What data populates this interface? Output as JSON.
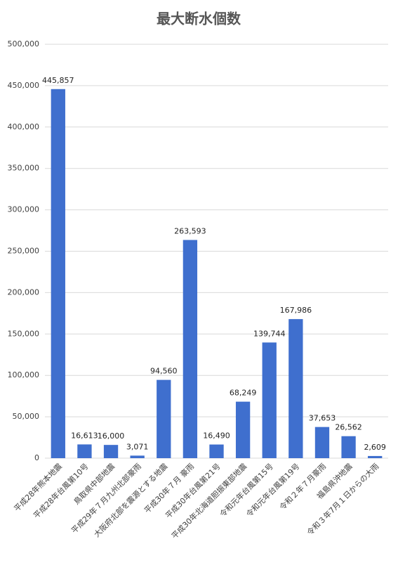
{
  "chart_data": {
    "type": "bar",
    "title": "最大断水個数",
    "categories": [
      "平成28年熊本地震",
      "平成28年台風第10号",
      "鳥取県中部地震",
      "平成29年７月九州北部豪雨",
      "大阪府北部を震源とする地震",
      "平成30年７月 豪雨",
      "平成30年台風第21号",
      "平成30年北海道胆振東部地震",
      "令和元年台風第15号",
      "令和元年台風第19号",
      "令和２年７月豪雨",
      "福島県沖地震",
      "令和３年7月１日からの大雨"
    ],
    "values": [
      445857,
      16613,
      16000,
      3071,
      94560,
      263593,
      16490,
      68249,
      139744,
      167986,
      37653,
      26562,
      2609
    ],
    "value_labels": [
      "445,857",
      "16,613",
      "16,000",
      "3,071",
      "94,560",
      "263,593",
      "16,490",
      "68,249",
      "139,744",
      "167,986",
      "37,653",
      "26,562",
      "2,609"
    ],
    "color": "#3f6fce",
    "ylim": [
      0,
      500000
    ],
    "yticks": [
      {
        "value": 0,
        "label": "0"
      },
      {
        "value": 50000,
        "label": "50,000"
      },
      {
        "value": 100000,
        "label": "100,000"
      },
      {
        "value": 150000,
        "label": "150,000"
      },
      {
        "value": 200000,
        "label": "200,000"
      },
      {
        "value": 250000,
        "label": "250,000"
      },
      {
        "value": 300000,
        "label": "300,000"
      },
      {
        "value": 350000,
        "label": "350,000"
      },
      {
        "value": 400000,
        "label": "400,000"
      },
      {
        "value": 450000,
        "label": "450,000"
      },
      {
        "value": 500000,
        "label": "500,000"
      }
    ],
    "grid": true
  }
}
